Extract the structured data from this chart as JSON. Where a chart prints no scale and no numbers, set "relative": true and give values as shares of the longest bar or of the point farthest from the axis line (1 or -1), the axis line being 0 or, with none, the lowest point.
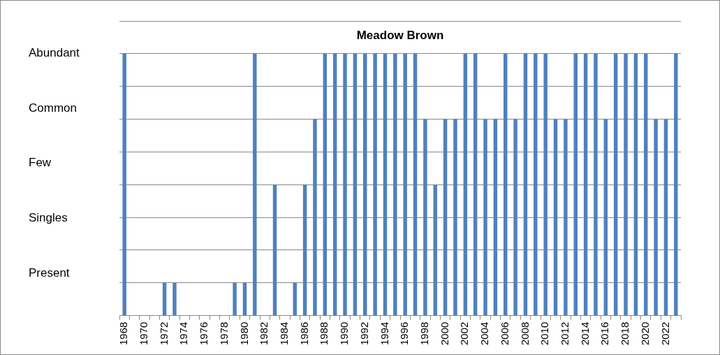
{
  "chart_data": {
    "type": "bar",
    "title": "Meadow Brown",
    "relative": true,
    "categories": [
      "1968",
      null,
      "1970",
      null,
      "1972",
      null,
      "1974",
      null,
      "1976",
      null,
      "1978",
      null,
      "1980",
      null,
      "1982",
      null,
      "1984",
      null,
      "1986",
      null,
      "1988",
      null,
      "1990",
      null,
      "1992",
      null,
      "1994",
      null,
      "1996",
      null,
      "1998",
      null,
      "2000",
      null,
      "2002",
      null,
      "2004",
      null,
      "2006",
      null,
      "2008",
      null,
      "2010",
      null,
      "2012",
      null,
      "2014",
      null,
      "2016",
      null,
      "2018",
      null,
      "2020",
      null,
      "2022",
      null
    ],
    "values": [
      1,
      0,
      0,
      0,
      0.125,
      0.125,
      0,
      0,
      0,
      0,
      0,
      0.125,
      0.125,
      1,
      0,
      0.5,
      0,
      0.125,
      0.5,
      0.75,
      1,
      1,
      1,
      1,
      1,
      1,
      1,
      1,
      1,
      1,
      0.75,
      0.5,
      0.75,
      0.75,
      1,
      1,
      0.75,
      0.75,
      1,
      0.75,
      1,
      1,
      1,
      0.75,
      0.75,
      1,
      1,
      1,
      0.75,
      1,
      1,
      1,
      1,
      0.75,
      0.75,
      1
    ],
    "color": "#4f81bd",
    "annotations": [
      "Abundant",
      "Common",
      "Few",
      "Singles",
      "Present"
    ],
    "grid": "y"
  }
}
